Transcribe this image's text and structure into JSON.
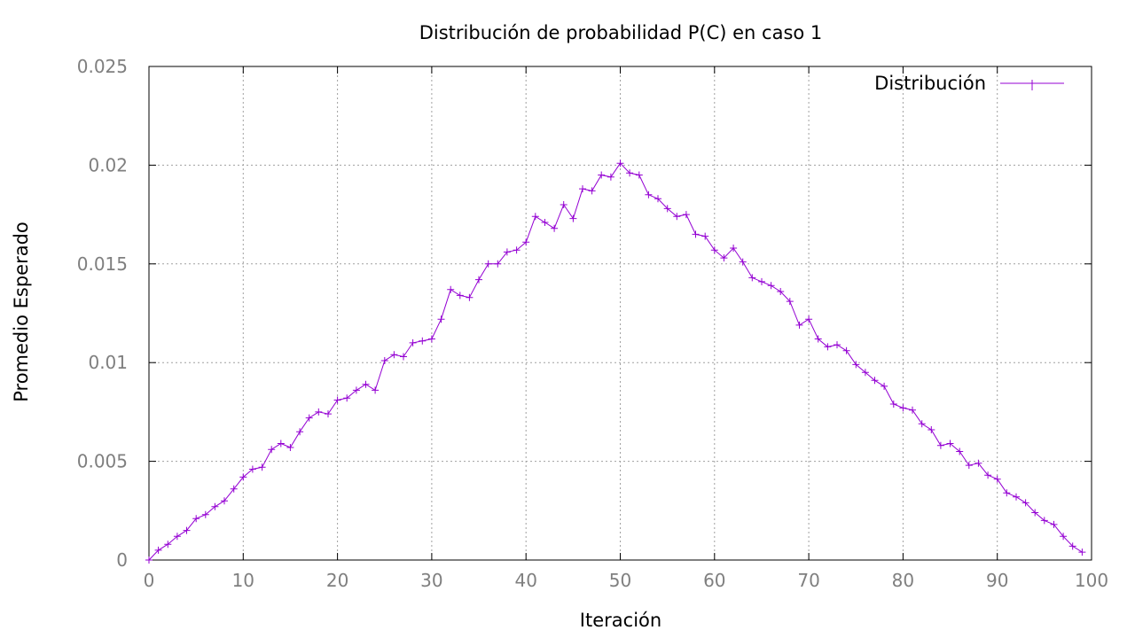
{
  "chart_data": {
    "type": "line",
    "title": "Distribución de probabilidad P(C) en caso 1",
    "xlabel": "Iteración",
    "ylabel": "Promedio Esperado",
    "xlim": [
      0,
      100
    ],
    "ylim": [
      0,
      0.025
    ],
    "xticks": [
      "0",
      "10",
      "20",
      "30",
      "40",
      "50",
      "60",
      "70",
      "80",
      "90",
      "100"
    ],
    "yticks": [
      "0",
      "0.005",
      "0.01",
      "0.015",
      "0.02",
      "0.025"
    ],
    "grid": true,
    "legend_position": "top-right",
    "colors": {
      "series": "#9400d3",
      "axis": "#000000",
      "tick_text": "#7f7f7f"
    },
    "series": [
      {
        "name": "Distribución",
        "x": [
          0,
          1,
          2,
          3,
          4,
          5,
          6,
          7,
          8,
          9,
          10,
          11,
          12,
          13,
          14,
          15,
          16,
          17,
          18,
          19,
          20,
          21,
          22,
          23,
          24,
          25,
          26,
          27,
          28,
          29,
          30,
          31,
          32,
          33,
          34,
          35,
          36,
          37,
          38,
          39,
          40,
          41,
          42,
          43,
          44,
          45,
          46,
          47,
          48,
          49,
          50,
          51,
          52,
          53,
          54,
          55,
          56,
          57,
          58,
          59,
          60,
          61,
          62,
          63,
          64,
          65,
          66,
          67,
          68,
          69,
          70,
          71,
          72,
          73,
          74,
          75,
          76,
          77,
          78,
          79,
          80,
          81,
          82,
          83,
          84,
          85,
          86,
          87,
          88,
          89,
          90,
          91,
          92,
          93,
          94,
          95,
          96,
          97,
          98,
          99
        ],
        "values": [
          0.0,
          0.0005,
          0.0008,
          0.0012,
          0.0015,
          0.0021,
          0.0023,
          0.0027,
          0.003,
          0.0036,
          0.0042,
          0.0046,
          0.0047,
          0.0056,
          0.0059,
          0.0057,
          0.0065,
          0.0072,
          0.0075,
          0.0074,
          0.0081,
          0.0082,
          0.0086,
          0.0089,
          0.0086,
          0.0101,
          0.0104,
          0.0103,
          0.011,
          0.0111,
          0.0112,
          0.0122,
          0.0137,
          0.0134,
          0.0133,
          0.0142,
          0.015,
          0.015,
          0.0156,
          0.0157,
          0.0161,
          0.0174,
          0.0171,
          0.0168,
          0.018,
          0.0173,
          0.0188,
          0.0187,
          0.0195,
          0.0194,
          0.0201,
          0.0196,
          0.0195,
          0.0185,
          0.0183,
          0.0178,
          0.0174,
          0.0175,
          0.0165,
          0.0164,
          0.0157,
          0.0153,
          0.0158,
          0.0151,
          0.0143,
          0.0141,
          0.0139,
          0.0136,
          0.0131,
          0.0119,
          0.0122,
          0.0112,
          0.0108,
          0.0109,
          0.0106,
          0.0099,
          0.0095,
          0.0091,
          0.0088,
          0.0079,
          0.0077,
          0.0076,
          0.0069,
          0.0066,
          0.0058,
          0.0059,
          0.0055,
          0.0048,
          0.0049,
          0.0043,
          0.0041,
          0.0034,
          0.0032,
          0.0029,
          0.0024,
          0.002,
          0.0018,
          0.0012,
          0.0007,
          0.0004
        ]
      }
    ]
  }
}
